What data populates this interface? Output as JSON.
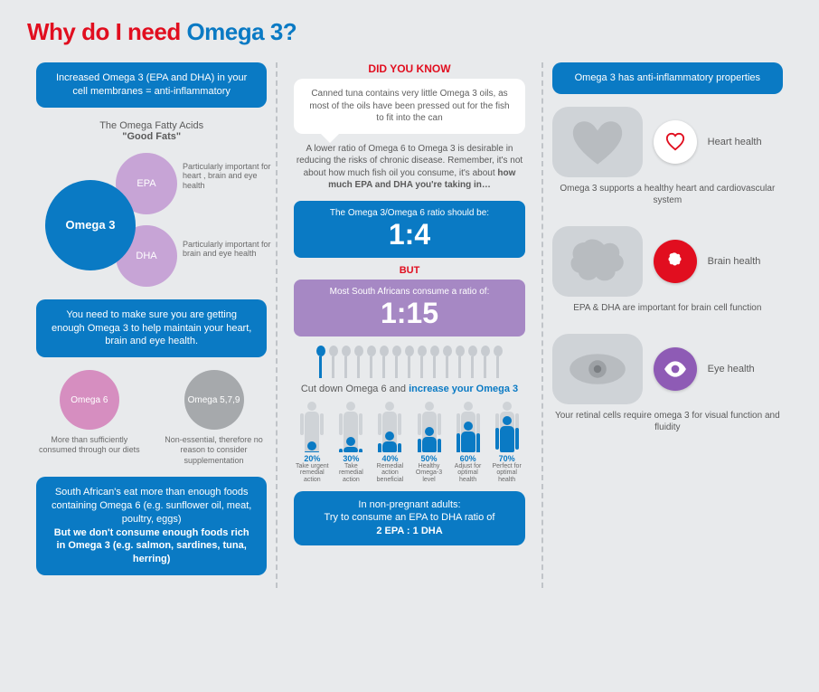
{
  "title": {
    "part1": "Why do I need ",
    "part2": "Omega 3?"
  },
  "colors": {
    "blue": "#0a7ac4",
    "red": "#e10e1f",
    "purple": "#a688c4",
    "lilac": "#c7a4d6",
    "pink": "#d68ec0",
    "grey": "#a6a9ac",
    "sil_grey": "#cfd3d7",
    "bg": "#e8eaec",
    "text": "#5a5a5a"
  },
  "left": {
    "box1": "Increased Omega 3 (EPA and DHA) in your cell membranes = anti-inflammatory",
    "fatty_label": "The Omega  Fatty Acids",
    "fatty_bold": "\"Good Fats\"",
    "venn": {
      "main": "Omega 3",
      "epa": "EPA",
      "dha": "DHA",
      "epa_note": "Particularly important for heart , brain and eye health",
      "dha_note": "Particularly important for brain and eye health"
    },
    "box2": "You need to make sure you are getting enough Omega 3 to help maintain your heart, brain and eye health.",
    "pair": {
      "a_label": "Omega 6",
      "a_note": "More than sufficiently consumed through our diets",
      "b_label": "Omega 5,7,9",
      "b_note": "Non-essential, therefore no reason to consider supplementation"
    },
    "box3_line1": "South African's eat more than enough foods containing Omega 6 (e.g. sunflower oil, meat, poultry, eggs)",
    "box3_line2": "But we don't consume enough foods rich in Omega 3 (e.g. salmon, sardines, tuna, herring)"
  },
  "mid": {
    "dyk_head": "DID YOU KNOW",
    "dyk_text": "Canned tuna contains very little Omega 3 oils, as most of the oils have been pressed out for the fish to fit into the can",
    "para1": "A lower ratio of Omega 6 to Omega 3 is desirable in reducing the risks of chronic disease. Remember, it's not about how much fish oil you consume, it's about",
    "para1_bold": "how much EPA and DHA you're taking in…",
    "ratio1_label": "The Omega 3/Omega 6 ratio should be:",
    "ratio1_value": "1:4",
    "but": "BUT",
    "ratio2_label": "Most South Africans consume a ratio of:",
    "ratio2_value": "1:15",
    "spoons": {
      "total": 15,
      "filled": 1
    },
    "cut_a": "Cut down Omega 6 and ",
    "cut_b": "increase your Omega 3",
    "bodies": [
      {
        "pct": "20%",
        "label": "Take urgent remedial action",
        "fill": 20
      },
      {
        "pct": "30%",
        "label": "Take remedial action",
        "fill": 30
      },
      {
        "pct": "40%",
        "label": "Remedial action beneficial",
        "fill": 40
      },
      {
        "pct": "50%",
        "label": "Healthy Omega-3 level",
        "fill": 50
      },
      {
        "pct": "60%",
        "label": "Adjust for optimal health",
        "fill": 60
      },
      {
        "pct": "70%",
        "label": "Perfect for optimal health",
        "fill": 70
      }
    ],
    "box_end_a": "In non-pregnant adults:",
    "box_end_b": "Try to consume an EPA to DHA ratio of",
    "box_end_c": "2 EPA : 1 DHA"
  },
  "right": {
    "box1": "Omega 3 has anti-inflammatory properties",
    "items": [
      {
        "label": "Heart health",
        "desc": "Omega 3 supports a healthy heart and cardiovascular system",
        "icon": "heart"
      },
      {
        "label": "Brain health",
        "desc": "EPA & DHA are important for brain cell function",
        "icon": "brain"
      },
      {
        "label": "Eye health",
        "desc": "Your retinal cells require omega 3 for visual function and fluidity",
        "icon": "eye"
      }
    ]
  }
}
